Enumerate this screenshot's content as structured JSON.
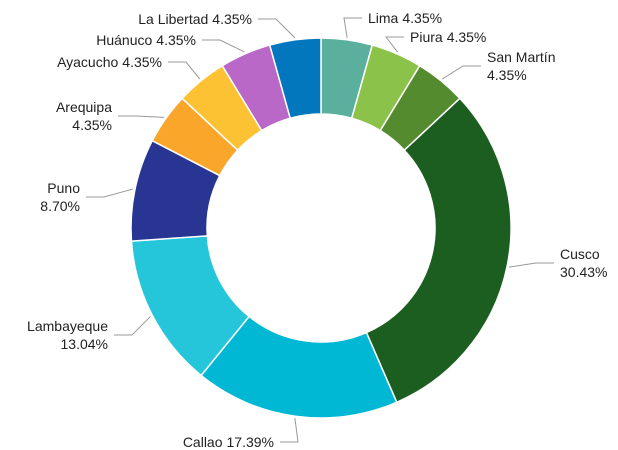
{
  "chart_data": {
    "type": "donut",
    "categories": [
      "Lima",
      "Piura",
      "San Martín",
      "Cusco",
      "Callao",
      "Lambayeque",
      "Puno",
      "Arequipa",
      "Ayacucho",
      "Huánuco",
      "La Libertad"
    ],
    "values": [
      4.35,
      4.35,
      4.35,
      30.43,
      17.39,
      13.04,
      8.7,
      4.35,
      4.35,
      4.35,
      4.35
    ],
    "value_labels": [
      "4.35%",
      "4.35%",
      "4.35%",
      "30.43%",
      "17.39%",
      "13.04%",
      "8.70%",
      "4.35%",
      "4.35%",
      "4.35%",
      "4.35%"
    ],
    "colors": [
      "#5aaf9d",
      "#8bc34a",
      "#558b2f",
      "#1b5e20",
      "#00b8d4",
      "#26c6da",
      "#283593",
      "#f9a62b",
      "#fcc233",
      "#b968c7",
      "#0277bd"
    ]
  }
}
